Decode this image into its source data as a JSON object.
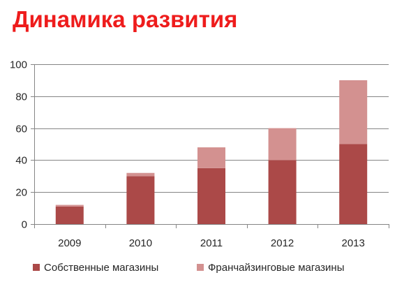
{
  "title": "Динамика развития",
  "colors": {
    "title": "#ee1c1c",
    "own": "#ab4948",
    "franchise": "#d39190",
    "grid": "#858585",
    "axis": "#858585",
    "text": "#262626"
  },
  "chart_data": {
    "type": "bar",
    "stacked": true,
    "title": "Динамика развития",
    "xlabel": "",
    "ylabel": "",
    "categories": [
      "2009",
      "2010",
      "2011",
      "2012",
      "2013"
    ],
    "series": [
      {
        "name": "Собственные магазины",
        "values": [
          11,
          30,
          35,
          40,
          50
        ]
      },
      {
        "name": "Франчайзинговые магазины",
        "values": [
          1,
          2,
          13,
          20,
          40
        ]
      }
    ],
    "ylim": [
      0,
      100
    ],
    "yticks": [
      0,
      20,
      40,
      60,
      80,
      100
    ],
    "grid": true,
    "legend": "bottom"
  }
}
